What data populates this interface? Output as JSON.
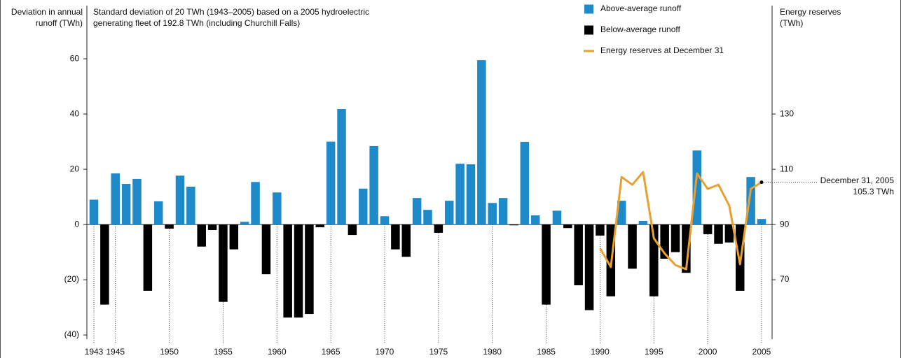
{
  "chart_data": {
    "type": "bar",
    "y_label": [
      "Deviation in annual",
      "runoff (TWh)"
    ],
    "subtitle": [
      "Standard deviation of 20 TWh (1943–2005) based on a 2005 hydroelectric",
      "generating fleet of 192.8 TWh (including Churchill Falls)"
    ],
    "y2_label": [
      "Energy reserves",
      "(TWh)"
    ],
    "annotation": [
      "December 31, 2005",
      "105.3 TWh"
    ],
    "categories": [
      "1943",
      null,
      "1945",
      null,
      null,
      null,
      null,
      "1950",
      null,
      null,
      null,
      null,
      "1955",
      null,
      null,
      null,
      null,
      "1960",
      null,
      null,
      null,
      null,
      "1965",
      null,
      null,
      null,
      null,
      "1970",
      null,
      null,
      null,
      null,
      "1975",
      null,
      null,
      null,
      null,
      "1980",
      null,
      null,
      null,
      null,
      "1985",
      null,
      null,
      null,
      null,
      "1990",
      null,
      null,
      null,
      null,
      "1995",
      null,
      null,
      null,
      null,
      "2000",
      null,
      null,
      null,
      null,
      "2005"
    ],
    "series": [
      {
        "name": "Above-average runoff",
        "color": "#1f8ac9",
        "values": [
          9,
          null,
          18.5,
          14.7,
          16.5,
          null,
          8.4,
          null,
          17.7,
          13.7,
          null,
          null,
          null,
          null,
          1,
          15.4,
          null,
          11.6,
          null,
          null,
          null,
          null,
          30,
          41.8,
          null,
          13,
          28.4,
          3,
          null,
          null,
          9.6,
          5.3,
          null,
          8.6,
          22,
          21.8,
          59.5,
          7.8,
          9.6,
          null,
          29.9,
          3.3,
          null,
          5,
          null,
          null,
          null,
          null,
          null,
          8.6,
          null,
          1.3,
          null,
          null,
          null,
          null,
          26.8,
          null,
          null,
          null,
          null,
          17.2,
          2
        ]
      },
      {
        "name": "Below-average runoff",
        "color": "#000000",
        "values": [
          null,
          -29,
          null,
          null,
          null,
          -24,
          null,
          -1.5,
          null,
          null,
          -8,
          -2,
          -28,
          -9,
          null,
          null,
          -18,
          null,
          -33.7,
          -33.7,
          -32.4,
          -1,
          null,
          null,
          -3.8,
          null,
          null,
          null,
          -9,
          -11.7,
          null,
          null,
          -3,
          null,
          null,
          null,
          null,
          null,
          null,
          -0.3,
          null,
          null,
          -29,
          null,
          -1.3,
          -22,
          -31,
          -4,
          -26,
          null,
          -16,
          null,
          -26,
          -12.4,
          -10,
          -17.5,
          null,
          -3.5,
          -7,
          -6.5,
          -24,
          null,
          null
        ]
      },
      {
        "name": "Energy reserves at December 31",
        "type": "line",
        "axis": "y2",
        "color": "#e8a030",
        "values": [
          null,
          null,
          null,
          null,
          null,
          null,
          null,
          null,
          null,
          null,
          null,
          null,
          null,
          null,
          null,
          null,
          null,
          null,
          null,
          null,
          null,
          null,
          null,
          null,
          null,
          null,
          null,
          null,
          null,
          null,
          null,
          null,
          null,
          null,
          null,
          null,
          null,
          null,
          null,
          null,
          null,
          null,
          null,
          null,
          null,
          null,
          null,
          81.4,
          74.6,
          107.2,
          104.4,
          109,
          85,
          79.5,
          75.3,
          73.8,
          108.5,
          102.9,
          104.4,
          96.8,
          75.6,
          102.9,
          105.3
        ]
      }
    ],
    "ylim": [
      -41.5,
      62.3
    ],
    "yticks": [
      {
        "value": -40,
        "label": "(40)"
      },
      {
        "value": -20,
        "label": "(20)"
      },
      0,
      20,
      40,
      60
    ],
    "y2lim": [
      48.5,
      152.3
    ],
    "y2ticks": [
      70,
      90,
      110,
      130
    ],
    "legend": "top-right"
  }
}
